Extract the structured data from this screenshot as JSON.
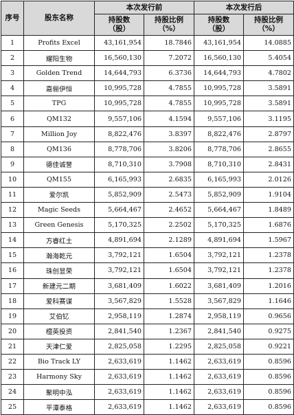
{
  "header": {
    "seq": "序号",
    "name": "股东名称",
    "before_group": "本次发行前",
    "after_group": "本次发行后",
    "before_shares": "持股数（股）",
    "before_ratio": "持股比例（%）",
    "after_shares": "持股数（股）",
    "after_ratio": "持股比例（%）"
  },
  "rows": [
    {
      "no": "1",
      "name": "Profits Excel",
      "before_shares": "43,161,954",
      "before_ratio": "18.7846",
      "after_shares": "43,161,954",
      "after_ratio": "14.0885"
    },
    {
      "no": "2",
      "name": "耀阳生物",
      "before_shares": "16,560,130",
      "before_ratio": "7.2072",
      "after_shares": "16,560,130",
      "after_ratio": "5.4054"
    },
    {
      "no": "3",
      "name": "Golden Trend",
      "before_shares": "14,644,793",
      "before_ratio": "6.3736",
      "after_shares": "14,644,793",
      "after_ratio": "4.7802"
    },
    {
      "no": "4",
      "name": "嘉俪伊恒",
      "before_shares": "10,995,728",
      "before_ratio": "4.7855",
      "after_shares": "10,995,728",
      "after_ratio": "3.5891"
    },
    {
      "no": "5",
      "name": "TPG",
      "before_shares": "10,995,728",
      "before_ratio": "4.7855",
      "after_shares": "10,995,728",
      "after_ratio": "3.5891"
    },
    {
      "no": "6",
      "name": "QM132",
      "before_shares": "9,557,106",
      "before_ratio": "4.1594",
      "after_shares": "9,557,106",
      "after_ratio": "3.1195"
    },
    {
      "no": "7",
      "name": "Million Joy",
      "before_shares": "8,822,476",
      "before_ratio": "3.8397",
      "after_shares": "8,822,476",
      "after_ratio": "2.8797"
    },
    {
      "no": "8",
      "name": "QM136",
      "before_shares": "8,778,706",
      "before_ratio": "3.8206",
      "after_shares": "8,778,706",
      "after_ratio": "2.8655"
    },
    {
      "no": "9",
      "name": "德佳诚誉",
      "before_shares": "8,710,310",
      "before_ratio": "3.7908",
      "after_shares": "8,710,310",
      "after_ratio": "2.8431"
    },
    {
      "no": "10",
      "name": "QM155",
      "before_shares": "6,165,993",
      "before_ratio": "2.6835",
      "after_shares": "6,165,993",
      "after_ratio": "2.0126"
    },
    {
      "no": "11",
      "name": "爱尔凯",
      "before_shares": "5,852,909",
      "before_ratio": "2.5473",
      "after_shares": "5,852,909",
      "after_ratio": "1.9104"
    },
    {
      "no": "12",
      "name": "Magic Seeds",
      "before_shares": "5,664,467",
      "before_ratio": "2.4652",
      "after_shares": "5,664,467",
      "after_ratio": "1.8489"
    },
    {
      "no": "13",
      "name": "Green Genesis",
      "before_shares": "5,170,325",
      "before_ratio": "2.2502",
      "after_shares": "5,170,325",
      "after_ratio": "1.6876"
    },
    {
      "no": "14",
      "name": "方睿红土",
      "before_shares": "4,891,694",
      "before_ratio": "2.1289",
      "after_shares": "4,891,694",
      "after_ratio": "1.5967"
    },
    {
      "no": "15",
      "name": "瀚海乾元",
      "before_shares": "3,792,121",
      "before_ratio": "1.6504",
      "after_shares": "3,792,121",
      "after_ratio": "1.2378"
    },
    {
      "no": "16",
      "name": "珠创显荣",
      "before_shares": "3,792,121",
      "before_ratio": "1.6504",
      "after_shares": "3,792,121",
      "after_ratio": "1.2378"
    },
    {
      "no": "17",
      "name": "新建元二期",
      "before_shares": "3,681,409",
      "before_ratio": "1.6022",
      "after_shares": "3,681,409",
      "after_ratio": "1.2016"
    },
    {
      "no": "18",
      "name": "爱科赛谋",
      "before_shares": "3,567,829",
      "before_ratio": "1.5528",
      "after_shares": "3,567,829",
      "after_ratio": "1.1646"
    },
    {
      "no": "19",
      "name": "艾伯钇",
      "before_shares": "2,958,119",
      "before_ratio": "1.2874",
      "after_shares": "2,958,119",
      "after_ratio": "0.9656"
    },
    {
      "no": "20",
      "name": "檀英投资",
      "before_shares": "2,841,540",
      "before_ratio": "1.2367",
      "after_shares": "2,841,540",
      "after_ratio": "0.9275"
    },
    {
      "no": "21",
      "name": "天津仁爱",
      "before_shares": "2,825,058",
      "before_ratio": "1.2295",
      "after_shares": "2,825,058",
      "after_ratio": "0.9221"
    },
    {
      "no": "22",
      "name": "Bio Track LY",
      "before_shares": "2,633,619",
      "before_ratio": "1.1462",
      "after_shares": "2,633,619",
      "after_ratio": "0.8596"
    },
    {
      "no": "23",
      "name": "Harmony Sky",
      "before_shares": "2,633,619",
      "before_ratio": "1.1462",
      "after_shares": "2,633,619",
      "after_ratio": "0.8596"
    },
    {
      "no": "24",
      "name": "聚明中泓",
      "before_shares": "2,633,619",
      "before_ratio": "1.1462",
      "after_shares": "2,633,619",
      "after_ratio": "0.8596"
    },
    {
      "no": "25",
      "name": "平潭泰格",
      "before_shares": "2,633,619",
      "before_ratio": "1.1462",
      "after_shares": "2,633,619",
      "after_ratio": "0.8596"
    }
  ]
}
